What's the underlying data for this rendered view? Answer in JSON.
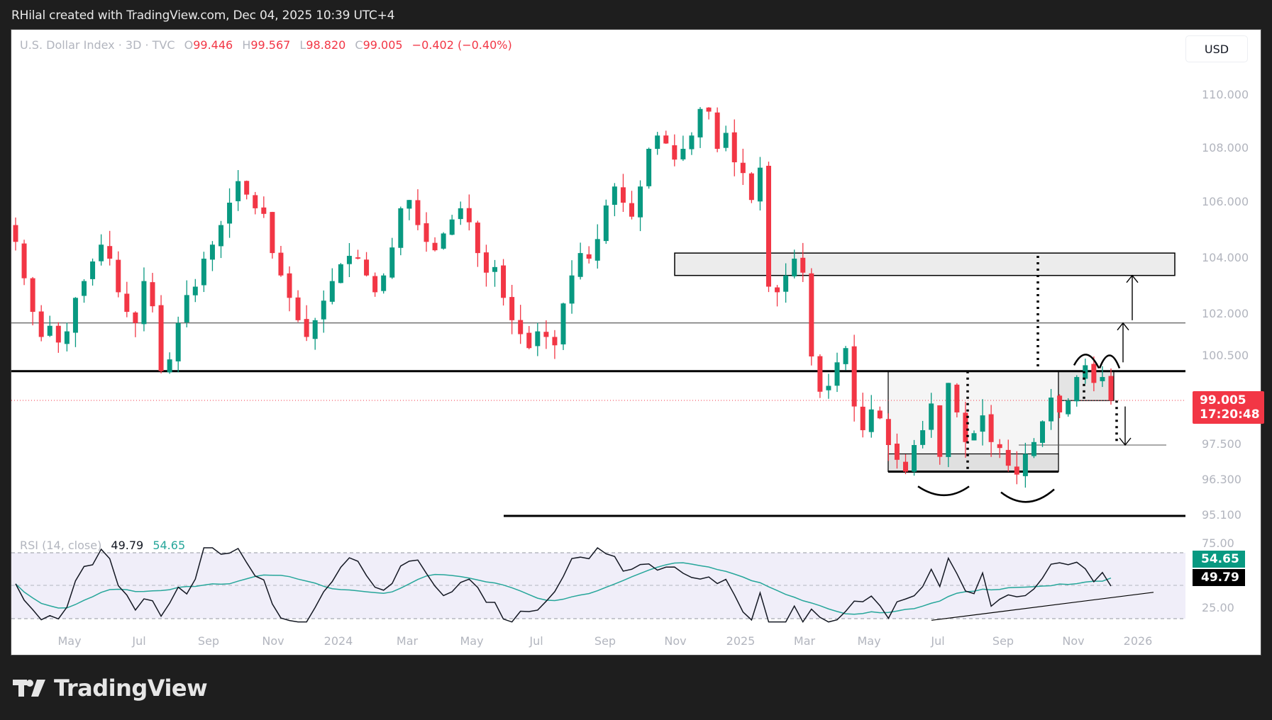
{
  "credit": "RHilal created with TradingView.com, Dec 04, 2025 10:39 UTC+4",
  "legend": {
    "symbol": "U.S. Dollar Index · 3D · TVC",
    "open_label": "O",
    "open": "99.446",
    "high_label": "H",
    "high": "99.567",
    "low_label": "L",
    "low": "98.820",
    "close_label": "C",
    "close": "99.005",
    "change": "−0.402 (−0.40%)"
  },
  "currency_button": "USD",
  "price_axis": [
    "110.000",
    "108.000",
    "106.000",
    "104.000",
    "102.000",
    "100.500",
    "97.500",
    "96.300",
    "95.100"
  ],
  "last_price": {
    "value": "99.005",
    "countdown": "17:20:48"
  },
  "rsi": {
    "label": "RSI (14, close)",
    "value": "49.79",
    "ma_value": "54.65",
    "axis": [
      "75.00",
      "25.00"
    ]
  },
  "time_axis": [
    "May",
    "Jul",
    "Sep",
    "Nov",
    "2024",
    "Mar",
    "May",
    "Jul",
    "Sep",
    "Nov",
    "2025",
    "Mar",
    "May",
    "Jul",
    "Sep",
    "Nov",
    "2026"
  ],
  "brand": "TradingView",
  "colors": {
    "up": "#089981",
    "down": "#f23645",
    "rsi": "#131722",
    "rsi_ma": "#26a69a",
    "rsi_band": "#f0eef9"
  },
  "chart_data": {
    "type": "candlestick",
    "title": "U.S. Dollar Index · 3D · TVC",
    "interval": "3D",
    "ylabel": "USD",
    "ylim": [
      94.5,
      111
    ],
    "x_ticks": [
      "May",
      "Jul",
      "Sep",
      "Nov",
      "2024",
      "Mar",
      "May",
      "Jul",
      "Sep",
      "Nov",
      "2025",
      "Mar",
      "May",
      "Jul",
      "Sep",
      "Nov",
      "2026"
    ],
    "y_ticks": [
      110.0,
      108.0,
      106.0,
      104.0,
      102.0,
      100.5,
      97.5,
      96.3,
      95.1
    ],
    "last": {
      "open": 99.446,
      "high": 99.567,
      "low": 98.82,
      "close": 99.005,
      "change": -0.402,
      "change_pct": -0.4
    },
    "close_path": [
      104.6,
      103.3,
      102.1,
      101.2,
      101.6,
      101.0,
      101.4,
      102.6,
      103.2,
      103.9,
      104.5,
      104.0,
      102.8,
      102.1,
      101.7,
      103.2,
      102.3,
      100.0,
      100.4,
      101.7,
      102.7,
      103.0,
      104.0,
      104.5,
      105.2,
      106.0,
      106.8,
      106.3,
      105.8,
      105.6,
      104.2,
      103.4,
      102.6,
      101.8,
      101.2,
      101.8,
      102.5,
      103.2,
      103.8,
      104.1,
      104.0,
      103.4,
      102.8,
      103.4,
      104.4,
      105.8,
      106.1,
      105.2,
      104.6,
      104.3,
      104.9,
      105.4,
      105.8,
      105.3,
      104.2,
      103.5,
      103.7,
      102.6,
      101.8,
      101.3,
      100.8,
      101.4,
      101.2,
      100.9,
      102.4,
      103.4,
      104.2,
      104.0,
      104.7,
      105.9,
      106.6,
      106.0,
      105.5,
      106.6,
      108.0,
      108.5,
      108.2,
      107.6,
      108.0,
      108.5,
      109.5,
      109.4,
      108.0,
      108.6,
      107.5,
      107.1,
      106.1,
      107.3,
      103.0,
      102.8,
      103.4,
      104.0,
      103.5,
      100.5,
      99.3,
      99.5,
      100.3,
      100.8,
      98.8,
      98.0,
      98.7,
      98.4,
      97.5,
      97.0,
      96.6,
      97.5,
      98.0,
      98.9,
      97.1,
      99.6,
      98.6,
      97.6,
      97.9,
      98.5,
      97.6,
      97.4,
      96.8,
      96.5,
      97.2,
      97.6,
      98.3,
      99.1,
      98.6,
      99.0,
      99.8,
      100.2,
      99.6,
      99.8,
      99.0
    ],
    "levels": {
      "resistance_zone": [
        103.4,
        104.2
      ],
      "line_101_7": 101.7,
      "neckline_100_0": 100.0,
      "range_box": [
        96.6,
        100.0
      ],
      "target_down": 97.5,
      "line_95_1": 95.1
    },
    "rsi_series": {
      "name": "RSI (14, close)",
      "last": 49.79,
      "ma_name": "RSI MA",
      "ma_last": 54.65,
      "bands": [
        70,
        50,
        30
      ],
      "ylim": [
        25,
        75
      ]
    }
  }
}
